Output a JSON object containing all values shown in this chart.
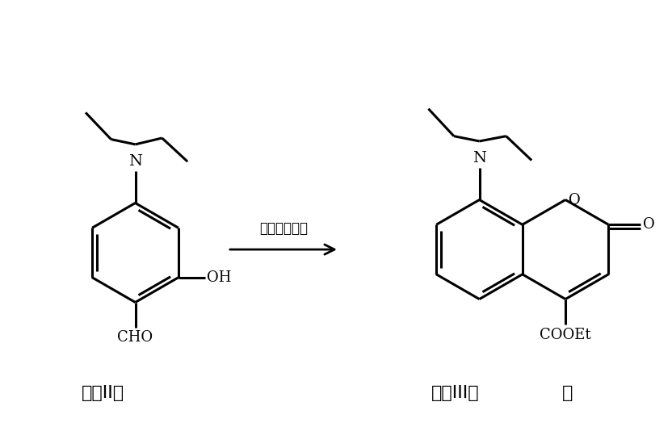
{
  "bg_color": "#ffffff",
  "line_color": "#000000",
  "lw": 2.2,
  "arrow_label": "丙二酸二乙酯",
  "label_II": "式（II）",
  "label_III": "式（III）",
  "semicolon": "；",
  "figsize": [
    8.32,
    5.55
  ],
  "dpi": 100
}
